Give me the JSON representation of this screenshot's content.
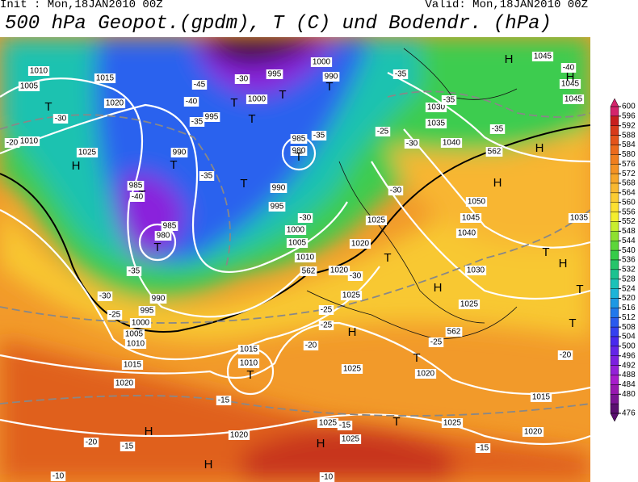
{
  "header": {
    "init": "Init : Mon,18JAN2010 00Z",
    "valid": "Valid: Mon,18JAN2010 00Z",
    "title": "500 hPa Geopot.(gpdm), T (C) und Bodendr. (hPa)"
  },
  "legend": {
    "labels": [
      600,
      596,
      592,
      588,
      584,
      580,
      576,
      572,
      568,
      564,
      560,
      556,
      552,
      548,
      544,
      540,
      536,
      532,
      528,
      524,
      520,
      516,
      512,
      508,
      504,
      500,
      496,
      492,
      488,
      484,
      480,
      476
    ],
    "colors": [
      "#d4246c",
      "#c81e1e",
      "#d83a1a",
      "#e4531a",
      "#ec6a1c",
      "#f07e1e",
      "#f49224",
      "#f6a62a",
      "#f8b830",
      "#fbcc32",
      "#fde030",
      "#f4ee2e",
      "#c8ee2e",
      "#8ee030",
      "#5cd63a",
      "#36cc48",
      "#26c46a",
      "#1cc290",
      "#1cc2b8",
      "#1cb4d8",
      "#1c98e4",
      "#2078ec",
      "#2a5aee",
      "#3440f0",
      "#4828ee",
      "#6424e8",
      "#7c20e0",
      "#9420d8",
      "#a81ccc",
      "#9818b0",
      "#7a1494",
      "#5a1070"
    ]
  },
  "map": {
    "pressure_labels": [
      "1010",
      "1015",
      "1005",
      "1020",
      "1010",
      "1025",
      "1000",
      "995",
      "990",
      "1000",
      "995",
      "985",
      "980",
      "990",
      "985",
      "990",
      "995",
      "985",
      "980",
      "1000",
      "1005",
      "1010",
      "1020",
      "1020",
      "1025",
      "990",
      "995",
      "1000",
      "1005",
      "1010",
      "1015",
      "1020",
      "1015",
      "1010",
      "1025",
      "1025",
      "1020",
      "1015",
      "1020",
      "1020",
      "1025",
      "1025",
      "1025",
      "1030",
      "1035",
      "1040",
      "1050",
      "1045",
      "1040",
      "1030",
      "1025",
      "1045",
      "1045",
      "1045",
      "1035"
    ],
    "centers": [
      "H",
      "T",
      "H",
      "T",
      "T",
      "T",
      "T",
      "T",
      "T",
      "T",
      "T",
      "T",
      "T",
      "H",
      "H",
      "H",
      "H",
      "T",
      "H",
      "T",
      "T",
      "H",
      "T",
      "T",
      "H",
      "H",
      "H",
      "T"
    ],
    "temp_labels": [
      "-45",
      "-40",
      "-35",
      "-30",
      "-20",
      "-40",
      "-35",
      "-35",
      "-30",
      "-25",
      "-30",
      "-30",
      "-25",
      "-25",
      "-20",
      "-25",
      "-30",
      "-25",
      "-30",
      "-35",
      "-35",
      "-40",
      "-35",
      "-20",
      "-15",
      "-20",
      "-15",
      "-15",
      "-10",
      "-15",
      "-10",
      "-30",
      "-35"
    ],
    "contour_labels": [
      "562",
      "562",
      "562"
    ]
  }
}
